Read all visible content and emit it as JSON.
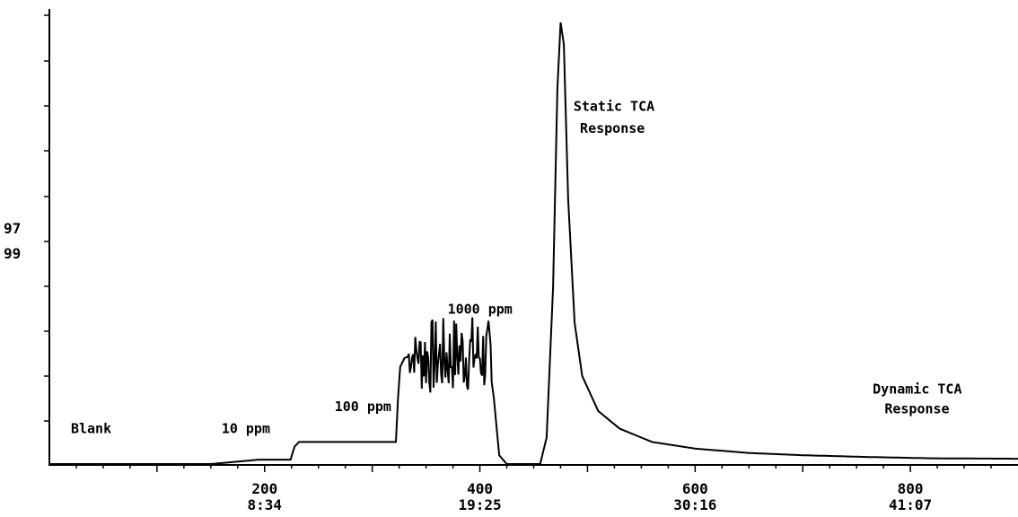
{
  "chart_data": {
    "type": "line",
    "title": "",
    "xlabel": "",
    "ylabel": "",
    "xlim": [
      0,
      900
    ],
    "y_tick_labels": [
      "97",
      "99"
    ],
    "x_ticks": [
      {
        "value": 200,
        "label": "200",
        "time": "8:34"
      },
      {
        "value": 400,
        "label": "400",
        "time": "19:25"
      },
      {
        "value": 600,
        "label": "600",
        "time": "30:16"
      },
      {
        "value": 800,
        "label": "800",
        "time": "41:07"
      }
    ],
    "series": [
      {
        "x": [
          0,
          150,
          195,
          224,
          228,
          232,
          270,
          310,
          322,
          324,
          326,
          330,
          340,
          360,
          380,
          400,
          408,
          413,
          418,
          425,
          440,
          456,
          462,
          468,
          472,
          475,
          478,
          482,
          488,
          495,
          510,
          530,
          560,
          600,
          650,
          700,
          760,
          820,
          900
        ],
        "y": [
          0,
          0,
          1,
          1,
          4,
          5,
          5,
          5,
          5,
          15,
          22,
          24,
          25,
          24,
          25,
          25,
          24,
          15,
          2,
          0,
          0,
          0,
          6,
          40,
          85,
          100,
          95,
          60,
          32,
          20,
          12,
          8,
          5,
          3.5,
          2.5,
          2,
          1.6,
          1.3,
          1.2
        ],
        "noise_region": [
          333,
          410
        ]
      }
    ],
    "annotations": [
      {
        "text": "Blank",
        "x": 20,
        "y": 7
      },
      {
        "text": "10 ppm",
        "x": 160,
        "y": 7
      },
      {
        "text": "100 ppm",
        "x": 265,
        "y": 12
      },
      {
        "text": "1000 ppm",
        "x": 370,
        "y": 34
      },
      {
        "text": "Static TCA",
        "x": 487,
        "y": 80
      },
      {
        "text": "Response",
        "x": 493,
        "y": 75
      },
      {
        "text": "Dynamic TCA",
        "x": 765,
        "y": 16
      },
      {
        "text": "Response",
        "x": 776,
        "y": 11.5
      }
    ]
  }
}
